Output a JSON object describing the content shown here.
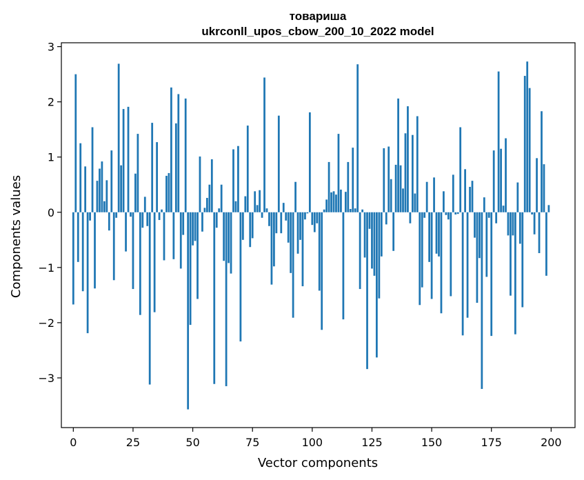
{
  "chart_data": {
    "type": "bar",
    "title": "товариша",
    "subtitle": "ukrconll_upos_cbow_200_10_2022 model",
    "xlabel": "Vector components",
    "ylabel": "Components values",
    "xlim": [
      -5,
      210
    ],
    "ylim": [
      -3.9,
      3.07
    ],
    "xticks": [
      0,
      25,
      50,
      75,
      100,
      125,
      150,
      175,
      200
    ],
    "xtick_labels": [
      "0",
      "25",
      "50",
      "75",
      "100",
      "125",
      "150",
      "175",
      "200"
    ],
    "yticks": [
      -3,
      -2,
      -1,
      0,
      1,
      2,
      3
    ],
    "ytick_labels": [
      "−3",
      "−2",
      "−1",
      "0",
      "1",
      "2",
      "3"
    ],
    "grid": false,
    "color": "#1f77b4",
    "x": [
      0,
      1,
      2,
      3,
      4,
      5,
      6,
      7,
      8,
      9,
      10,
      11,
      12,
      13,
      14,
      15,
      16,
      17,
      18,
      19,
      20,
      21,
      22,
      23,
      24,
      25,
      26,
      27,
      28,
      29,
      30,
      31,
      32,
      33,
      34,
      35,
      36,
      37,
      38,
      39,
      40,
      41,
      42,
      43,
      44,
      45,
      46,
      47,
      48,
      49,
      50,
      51,
      52,
      53,
      54,
      55,
      56,
      57,
      58,
      59,
      60,
      61,
      62,
      63,
      64,
      65,
      66,
      67,
      68,
      69,
      70,
      71,
      72,
      73,
      74,
      75,
      76,
      77,
      78,
      79,
      80,
      81,
      82,
      83,
      84,
      85,
      86,
      87,
      88,
      89,
      90,
      91,
      92,
      93,
      94,
      95,
      96,
      97,
      98,
      99,
      100,
      101,
      102,
      103,
      104,
      105,
      106,
      107,
      108,
      109,
      110,
      111,
      112,
      113,
      114,
      115,
      116,
      117,
      118,
      119,
      120,
      121,
      122,
      123,
      124,
      125,
      126,
      127,
      128,
      129,
      130,
      131,
      132,
      133,
      134,
      135,
      136,
      137,
      138,
      139,
      140,
      141,
      142,
      143,
      144,
      145,
      146,
      147,
      148,
      149,
      150,
      151,
      152,
      153,
      154,
      155,
      156,
      157,
      158,
      159,
      160,
      161,
      162,
      163,
      164,
      165,
      166,
      167,
      168,
      169,
      170,
      171,
      172,
      173,
      174,
      175,
      176,
      177,
      178,
      179,
      180,
      181,
      182,
      183,
      184,
      185,
      186,
      187,
      188,
      189,
      190,
      191,
      192,
      193,
      194,
      195,
      196,
      197,
      198,
      199
    ],
    "values": [
      -1.67,
      2.5,
      -0.9,
      1.25,
      -1.43,
      0.83,
      -2.19,
      -0.15,
      1.54,
      -1.38,
      0.57,
      0.79,
      0.92,
      0.2,
      0.58,
      -0.33,
      1.12,
      -1.23,
      -0.1,
      2.69,
      0.85,
      1.87,
      -0.71,
      1.91,
      -0.08,
      -1.39,
      0.7,
      1.42,
      -1.86,
      -0.28,
      0.28,
      -0.25,
      -3.12,
      1.62,
      -1.81,
      1.27,
      -0.14,
      0.05,
      -0.87,
      0.66,
      0.71,
      2.26,
      -0.85,
      1.61,
      2.14,
      -1.02,
      -0.41,
      2.06,
      -3.57,
      -2.04,
      -0.6,
      -0.52,
      -1.57,
      1.01,
      -0.35,
      0.08,
      0.26,
      0.5,
      0.96,
      -3.11,
      -0.28,
      0.07,
      0.5,
      -0.88,
      -3.15,
      -0.92,
      -1.11,
      1.14,
      0.2,
      1.2,
      -2.34,
      -0.5,
      0.29,
      1.57,
      -0.63,
      -0.47,
      0.38,
      0.13,
      0.4,
      -0.1,
      2.44,
      0.07,
      -0.25,
      -1.31,
      -0.98,
      -0.38,
      1.75,
      -0.38,
      0.17,
      -0.15,
      -0.55,
      -1.1,
      -1.91,
      0.55,
      -0.75,
      -0.5,
      -1.34,
      -0.13,
      -0.02,
      1.81,
      -0.23,
      -0.36,
      -0.2,
      -1.42,
      -2.13,
      0.05,
      0.23,
      0.91,
      0.36,
      0.38,
      0.32,
      1.42,
      0.41,
      -1.94,
      0.37,
      0.91,
      0.06,
      1.17,
      0.07,
      2.68,
      -1.39,
      0.05,
      -0.82,
      -2.84,
      -0.3,
      -1.02,
      -1.15,
      -2.63,
      -1.56,
      -0.8,
      1.16,
      -0.22,
      1.19,
      0.6,
      -0.7,
      0.86,
      2.06,
      0.85,
      0.43,
      1.43,
      1.92,
      -0.2,
      1.4,
      0.34,
      1.74,
      -1.68,
      -1.36,
      -0.1,
      0.55,
      -0.9,
      -1.57,
      0.63,
      -0.75,
      -0.8,
      -1.83,
      0.38,
      -0.05,
      -0.13,
      -1.52,
      0.68,
      -0.04,
      -0.03,
      1.54,
      -2.23,
      0.78,
      -1.91,
      0.46,
      0.57,
      -0.46,
      -1.64,
      -0.83,
      -3.2,
      0.27,
      -1.17,
      -0.1,
      -2.24,
      1.12,
      -0.2,
      2.55,
      1.15,
      0.12,
      1.34,
      -0.42,
      -1.51,
      -0.42,
      -2.21,
      0.54,
      -0.57,
      -1.72,
      2.47,
      2.73,
      2.25,
      -0.04,
      -0.4,
      0.98,
      -0.74,
      1.83,
      0.87,
      -1.15,
      0.13
    ]
  }
}
